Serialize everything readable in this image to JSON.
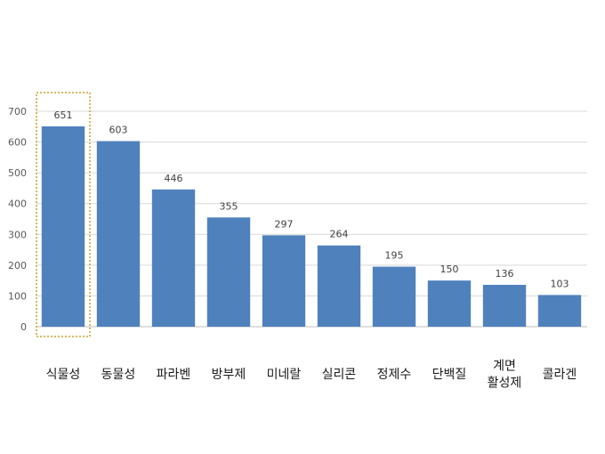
{
  "chart_data": {
    "type": "bar",
    "title": "",
    "xlabel": "",
    "ylabel": "",
    "categories": [
      "식물성",
      "동물성",
      "파라벤",
      "방부제",
      "미네랄",
      "실리콘",
      "정제수",
      "단백질",
      "계면\n활성제",
      "콜라겐"
    ],
    "values": [
      651,
      603,
      446,
      355,
      297,
      264,
      195,
      150,
      136,
      103
    ],
    "data_labels": [
      "651",
      "603",
      "446",
      "355",
      "297",
      "264",
      "195",
      "150",
      "136",
      "103"
    ],
    "ylim": [
      0,
      700
    ],
    "yticks": [
      0,
      100,
      200,
      300,
      400,
      500,
      600,
      700
    ],
    "grid": true,
    "legend": "none",
    "highlighted_category": "식물성",
    "colors": {
      "bar": "#4f81bd",
      "grid": "#d9d9d9",
      "axis": "#bfbfbf",
      "highlight_border": "#c9a227"
    }
  }
}
